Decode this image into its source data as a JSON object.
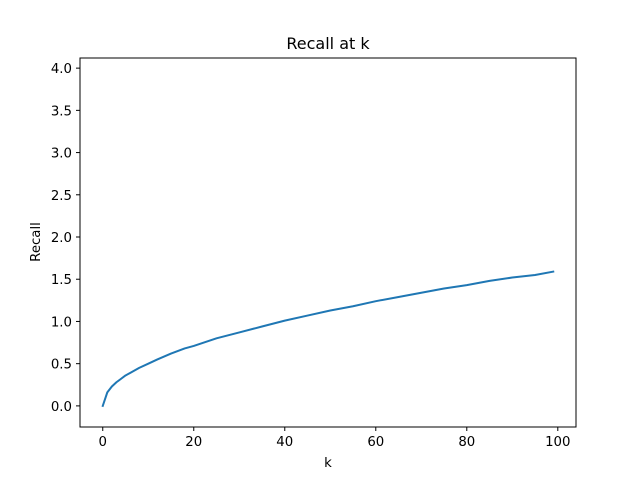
{
  "chart_data": {
    "type": "line",
    "title": "Recall at k",
    "xlabel": "k",
    "ylabel": "Recall",
    "xlim": [
      -5,
      104
    ],
    "ylim": [
      -0.25,
      4.12
    ],
    "xticks": [
      0,
      20,
      40,
      60,
      80,
      100
    ],
    "xtick_labels": [
      "0",
      "20",
      "40",
      "60",
      "80",
      "100"
    ],
    "yticks": [
      0.0,
      0.5,
      1.0,
      1.5,
      2.0,
      2.5,
      3.0,
      3.5,
      4.0
    ],
    "ytick_labels": [
      "0.0",
      "0.5",
      "1.0",
      "1.5",
      "2.0",
      "2.5",
      "3.0",
      "3.5",
      "4.0"
    ],
    "grid": false,
    "series": [
      {
        "color": "#1f77b4",
        "x": [
          0,
          1,
          2,
          3,
          4,
          5,
          6,
          8,
          10,
          12,
          15,
          18,
          20,
          25,
          30,
          35,
          40,
          45,
          50,
          55,
          60,
          65,
          70,
          75,
          80,
          85,
          90,
          95,
          99
        ],
        "y": [
          0.0,
          0.16,
          0.23,
          0.28,
          0.32,
          0.36,
          0.39,
          0.45,
          0.5,
          0.55,
          0.62,
          0.68,
          0.71,
          0.8,
          0.87,
          0.94,
          1.01,
          1.07,
          1.13,
          1.18,
          1.24,
          1.29,
          1.34,
          1.39,
          1.43,
          1.48,
          1.52,
          1.55,
          1.59
        ]
      }
    ]
  }
}
